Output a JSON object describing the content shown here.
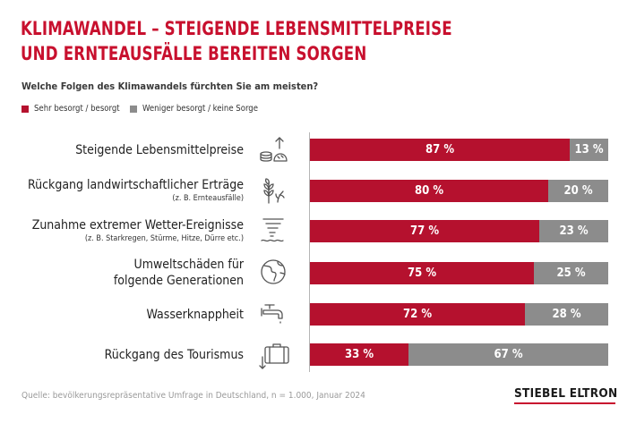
{
  "header": {
    "title_line1": "KLIMAWANDEL – STEIGENDE LEBENSMITTELPREISE",
    "title_line2": "UND ERNTEAUSFÄLLE BEREITEN SORGEN",
    "subtitle": "Welche Folgen des Klimawandels fürchten Sie am meisten?"
  },
  "legend": {
    "concerned": "Sehr besorgt / besorgt",
    "not_concerned": "Weniger besorgt / keine Sorge"
  },
  "colors": {
    "concerned": "#b5112e",
    "not_concerned": "#8c8c8c",
    "title": "#c8102e"
  },
  "icons": [
    "food-price-up-icon",
    "wheat-icon",
    "tornado-icon",
    "globe-icon",
    "faucet-icon",
    "suitcase-down-icon"
  ],
  "rows": [
    {
      "label": "Steigende Lebensmittelpreise",
      "sublabel": "",
      "concerned_label": "87 %",
      "not_concerned_label": "13 %"
    },
    {
      "label": "Rückgang landwirtschaftlicher Erträge",
      "sublabel": "(z. B. Ernteausfälle)",
      "concerned_label": "80 %",
      "not_concerned_label": "20 %"
    },
    {
      "label": "Zunahme extremer Wetter-Ereignisse",
      "sublabel": "(z. B. Starkregen, Stürme, Hitze, Dürre etc.)",
      "concerned_label": "77 %",
      "not_concerned_label": "23 %"
    },
    {
      "label": "Umweltschäden für",
      "sublabel": "folgende Generationen",
      "concerned_label": "75 %",
      "not_concerned_label": "25 %"
    },
    {
      "label": "Wasserknappheit",
      "sublabel": "",
      "concerned_label": "72 %",
      "not_concerned_label": "28 %"
    },
    {
      "label": "Rückgang des Tourismus",
      "sublabel": "",
      "concerned_label": "33 %",
      "not_concerned_label": "67 %"
    }
  ],
  "chart_data": {
    "type": "bar",
    "orientation": "horizontal",
    "stacked": true,
    "categories": [
      "Steigende Lebensmittelpreise",
      "Rückgang landwirtschaftlicher Erträge",
      "Zunahme extremer Wetter-Ereignisse",
      "Umweltschäden für folgende Generationen",
      "Wasserknappheit",
      "Rückgang des Tourismus"
    ],
    "series": [
      {
        "name": "Sehr besorgt / besorgt",
        "values": [
          87,
          80,
          77,
          75,
          72,
          33
        ]
      },
      {
        "name": "Weniger besorgt / keine Sorge",
        "values": [
          13,
          20,
          23,
          25,
          28,
          67
        ]
      }
    ],
    "xlim": [
      0,
      100
    ],
    "legend": "top-left"
  },
  "footer": {
    "source": "Quelle: bevölkerungsrepräsentative Umfrage in Deutschland, n = 1.000, Januar 2024"
  },
  "brand": {
    "logo_text": "STIEBEL ELTRON"
  }
}
